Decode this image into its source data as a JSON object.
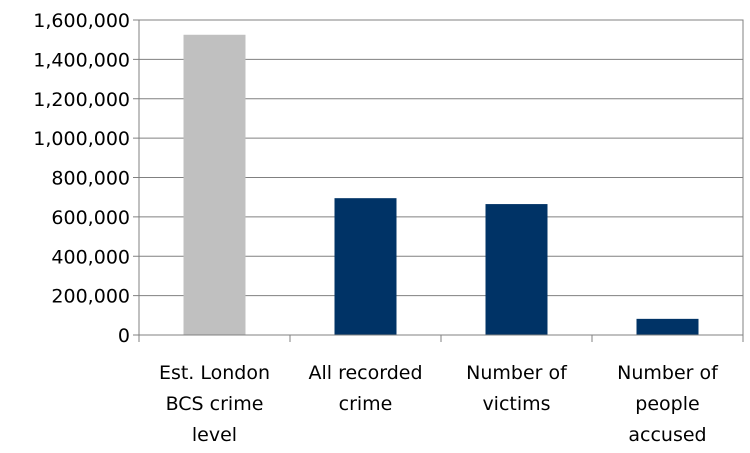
{
  "chart_data": {
    "type": "bar",
    "categories": [
      [
        "Est. London",
        "BCS crime",
        "level"
      ],
      [
        "All recorded",
        "crime"
      ],
      [
        "Number of",
        "victims"
      ],
      [
        "Number of",
        "people",
        "accused"
      ]
    ],
    "values": [
      1525000,
      695000,
      665000,
      82000
    ],
    "bar_colors": [
      "#c0c0c0",
      "#003366",
      "#003366",
      "#003366"
    ],
    "ylim": [
      0,
      1600000
    ],
    "yticks": [
      "0",
      "200,000",
      "400,000",
      "600,000",
      "800,000",
      "1,000,000",
      "1,200,000",
      "1,400,000",
      "1,600,000"
    ],
    "grid": true,
    "title": "",
    "xlabel": "",
    "ylabel": "",
    "legend": "none"
  }
}
